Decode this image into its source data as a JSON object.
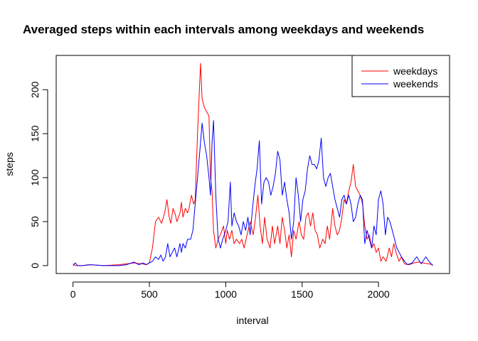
{
  "chart_data": {
    "type": "line",
    "title": "Averaged steps within each intervals among weekdays and weekends",
    "xlabel": "interval",
    "ylabel": "steps",
    "xlim": [
      -110,
      2465
    ],
    "ylim": [
      -9,
      239
    ],
    "x_ticks": [
      0,
      500,
      1000,
      1500,
      2000
    ],
    "y_ticks": [
      0,
      50,
      100,
      150,
      200
    ],
    "legend_position": "top-right",
    "series": [
      {
        "name": "weekdays",
        "color": "#ff0000",
        "points": [
          [
            0,
            2
          ],
          [
            15,
            0
          ],
          [
            30,
            0
          ],
          [
            45,
            0
          ],
          [
            60,
            0
          ],
          [
            100,
            1
          ],
          [
            200,
            0
          ],
          [
            300,
            1
          ],
          [
            400,
            3
          ],
          [
            450,
            2
          ],
          [
            480,
            1
          ],
          [
            500,
            3
          ],
          [
            520,
            20
          ],
          [
            540,
            50
          ],
          [
            560,
            55
          ],
          [
            580,
            48
          ],
          [
            600,
            60
          ],
          [
            615,
            75
          ],
          [
            630,
            55
          ],
          [
            640,
            48
          ],
          [
            655,
            65
          ],
          [
            670,
            58
          ],
          [
            680,
            50
          ],
          [
            700,
            60
          ],
          [
            710,
            72
          ],
          [
            720,
            55
          ],
          [
            735,
            65
          ],
          [
            750,
            60
          ],
          [
            760,
            65
          ],
          [
            775,
            80
          ],
          [
            790,
            70
          ],
          [
            800,
            75
          ],
          [
            815,
            150
          ],
          [
            825,
            190
          ],
          [
            835,
            230
          ],
          [
            845,
            190
          ],
          [
            860,
            180
          ],
          [
            875,
            175
          ],
          [
            890,
            170
          ],
          [
            900,
            100
          ],
          [
            910,
            85
          ],
          [
            920,
            40
          ],
          [
            935,
            20
          ],
          [
            950,
            30
          ],
          [
            965,
            35
          ],
          [
            985,
            45
          ],
          [
            1000,
            25
          ],
          [
            1010,
            40
          ],
          [
            1025,
            30
          ],
          [
            1040,
            40
          ],
          [
            1055,
            25
          ],
          [
            1070,
            30
          ],
          [
            1090,
            25
          ],
          [
            1105,
            30
          ],
          [
            1120,
            20
          ],
          [
            1140,
            35
          ],
          [
            1160,
            50
          ],
          [
            1180,
            35
          ],
          [
            1195,
            55
          ],
          [
            1210,
            80
          ],
          [
            1225,
            45
          ],
          [
            1240,
            25
          ],
          [
            1255,
            55
          ],
          [
            1270,
            30
          ],
          [
            1290,
            20
          ],
          [
            1305,
            45
          ],
          [
            1320,
            25
          ],
          [
            1340,
            45
          ],
          [
            1355,
            25
          ],
          [
            1370,
            55
          ],
          [
            1385,
            40
          ],
          [
            1400,
            20
          ],
          [
            1415,
            35
          ],
          [
            1430,
            10
          ],
          [
            1445,
            40
          ],
          [
            1460,
            30
          ],
          [
            1480,
            50
          ],
          [
            1495,
            35
          ],
          [
            1510,
            30
          ],
          [
            1525,
            55
          ],
          [
            1540,
            60
          ],
          [
            1555,
            45
          ],
          [
            1570,
            60
          ],
          [
            1585,
            40
          ],
          [
            1600,
            35
          ],
          [
            1615,
            20
          ],
          [
            1635,
            30
          ],
          [
            1650,
            25
          ],
          [
            1665,
            45
          ],
          [
            1680,
            30
          ],
          [
            1700,
            65
          ],
          [
            1715,
            45
          ],
          [
            1730,
            35
          ],
          [
            1745,
            40
          ],
          [
            1760,
            55
          ],
          [
            1775,
            75
          ],
          [
            1790,
            70
          ],
          [
            1805,
            85
          ],
          [
            1820,
            95
          ],
          [
            1835,
            115
          ],
          [
            1850,
            90
          ],
          [
            1865,
            85
          ],
          [
            1880,
            80
          ],
          [
            1895,
            70
          ],
          [
            1910,
            45
          ],
          [
            1925,
            30
          ],
          [
            1940,
            35
          ],
          [
            1955,
            20
          ],
          [
            1970,
            25
          ],
          [
            1985,
            15
          ],
          [
            2000,
            20
          ],
          [
            2015,
            5
          ],
          [
            2030,
            10
          ],
          [
            2050,
            5
          ],
          [
            2070,
            20
          ],
          [
            2085,
            10
          ],
          [
            2100,
            25
          ],
          [
            2115,
            15
          ],
          [
            2135,
            5
          ],
          [
            2150,
            10
          ],
          [
            2170,
            2
          ],
          [
            2200,
            1
          ],
          [
            2230,
            3
          ],
          [
            2260,
            4
          ],
          [
            2290,
            3
          ],
          [
            2330,
            2
          ],
          [
            2355,
            1
          ]
        ]
      },
      {
        "name": "weekends",
        "color": "#0000ff",
        "points": [
          [
            0,
            0
          ],
          [
            15,
            3
          ],
          [
            30,
            0
          ],
          [
            60,
            0
          ],
          [
            120,
            1
          ],
          [
            200,
            0
          ],
          [
            300,
            0
          ],
          [
            350,
            1
          ],
          [
            400,
            4
          ],
          [
            430,
            1
          ],
          [
            460,
            3
          ],
          [
            480,
            1
          ],
          [
            500,
            3
          ],
          [
            520,
            5
          ],
          [
            540,
            10
          ],
          [
            560,
            7
          ],
          [
            575,
            12
          ],
          [
            590,
            5
          ],
          [
            605,
            10
          ],
          [
            620,
            25
          ],
          [
            635,
            10
          ],
          [
            650,
            15
          ],
          [
            665,
            20
          ],
          [
            680,
            10
          ],
          [
            700,
            25
          ],
          [
            710,
            15
          ],
          [
            720,
            25
          ],
          [
            735,
            20
          ],
          [
            750,
            30
          ],
          [
            770,
            30
          ],
          [
            785,
            40
          ],
          [
            800,
            70
          ],
          [
            815,
            100
          ],
          [
            830,
            130
          ],
          [
            845,
            162
          ],
          [
            860,
            140
          ],
          [
            875,
            125
          ],
          [
            890,
            100
          ],
          [
            900,
            80
          ],
          [
            910,
            140
          ],
          [
            920,
            165
          ],
          [
            935,
            80
          ],
          [
            950,
            30
          ],
          [
            965,
            20
          ],
          [
            980,
            30
          ],
          [
            1000,
            40
          ],
          [
            1015,
            50
          ],
          [
            1030,
            95
          ],
          [
            1040,
            45
          ],
          [
            1055,
            60
          ],
          [
            1070,
            50
          ],
          [
            1085,
            45
          ],
          [
            1100,
            35
          ],
          [
            1115,
            50
          ],
          [
            1130,
            40
          ],
          [
            1145,
            55
          ],
          [
            1160,
            35
          ],
          [
            1175,
            65
          ],
          [
            1190,
            90
          ],
          [
            1205,
            110
          ],
          [
            1220,
            142
          ],
          [
            1235,
            70
          ],
          [
            1250,
            95
          ],
          [
            1265,
            100
          ],
          [
            1280,
            95
          ],
          [
            1295,
            80
          ],
          [
            1310,
            90
          ],
          [
            1325,
            105
          ],
          [
            1340,
            130
          ],
          [
            1355,
            120
          ],
          [
            1370,
            80
          ],
          [
            1385,
            95
          ],
          [
            1400,
            75
          ],
          [
            1415,
            60
          ],
          [
            1430,
            30
          ],
          [
            1445,
            50
          ],
          [
            1460,
            100
          ],
          [
            1475,
            80
          ],
          [
            1490,
            50
          ],
          [
            1505,
            75
          ],
          [
            1520,
            85
          ],
          [
            1535,
            110
          ],
          [
            1550,
            125
          ],
          [
            1565,
            115
          ],
          [
            1580,
            115
          ],
          [
            1595,
            110
          ],
          [
            1610,
            120
          ],
          [
            1625,
            145
          ],
          [
            1640,
            100
          ],
          [
            1655,
            90
          ],
          [
            1670,
            100
          ],
          [
            1685,
            105
          ],
          [
            1700,
            90
          ],
          [
            1715,
            75
          ],
          [
            1730,
            65
          ],
          [
            1745,
            55
          ],
          [
            1760,
            75
          ],
          [
            1775,
            80
          ],
          [
            1790,
            70
          ],
          [
            1805,
            80
          ],
          [
            1820,
            70
          ],
          [
            1835,
            50
          ],
          [
            1850,
            55
          ],
          [
            1865,
            70
          ],
          [
            1880,
            80
          ],
          [
            1895,
            75
          ],
          [
            1910,
            25
          ],
          [
            1925,
            40
          ],
          [
            1940,
            30
          ],
          [
            1955,
            20
          ],
          [
            1970,
            45
          ],
          [
            1985,
            35
          ],
          [
            2000,
            75
          ],
          [
            2015,
            85
          ],
          [
            2030,
            70
          ],
          [
            2045,
            35
          ],
          [
            2060,
            55
          ],
          [
            2075,
            50
          ],
          [
            2090,
            40
          ],
          [
            2105,
            30
          ],
          [
            2120,
            20
          ],
          [
            2135,
            15
          ],
          [
            2150,
            10
          ],
          [
            2170,
            5
          ],
          [
            2190,
            1
          ],
          [
            2220,
            3
          ],
          [
            2250,
            10
          ],
          [
            2280,
            2
          ],
          [
            2310,
            10
          ],
          [
            2330,
            5
          ],
          [
            2355,
            0
          ]
        ]
      }
    ]
  }
}
